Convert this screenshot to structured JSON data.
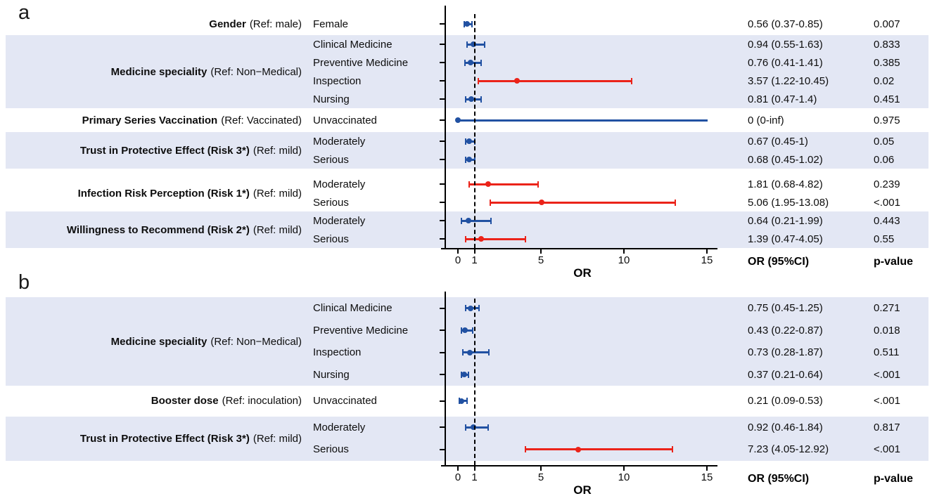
{
  "panels": [
    {
      "letter": "a"
    },
    {
      "letter": "b"
    }
  ],
  "colors": {
    "band": "#e3e7f4",
    "point_blue": "#2151a2",
    "point_red": "#eb2319",
    "axis": "#000000"
  },
  "chart_data": [
    {
      "panel": "a",
      "type": "forest",
      "xlabel": "OR",
      "or_header": "OR (95%CI)",
      "p_header": "p-value",
      "xticks": [
        0,
        1,
        5,
        10,
        15
      ],
      "xlim": [
        0,
        15.3
      ],
      "ref_line": 1,
      "groups": [
        {
          "factor_bold": "Gender",
          "factor_ref": "(Ref: male)",
          "shaded": false,
          "rows": [
            {
              "level": "Female",
              "or": 0.56,
              "lo": 0.37,
              "hi": 0.85,
              "or_ci_text": "0.56 (0.37-0.85)",
              "p_text": "0.007",
              "color": "blue"
            }
          ]
        },
        {
          "factor_bold": "Medicine speciality",
          "factor_ref": "(Ref: Non−Medical)",
          "shaded": true,
          "rows": [
            {
              "level": "Clinical Medicine",
              "or": 0.94,
              "lo": 0.55,
              "hi": 1.63,
              "or_ci_text": "0.94 (0.55-1.63)",
              "p_text": "0.833",
              "color": "blue"
            },
            {
              "level": "Preventive Medicine",
              "or": 0.76,
              "lo": 0.41,
              "hi": 1.41,
              "or_ci_text": "0.76 (0.41-1.41)",
              "p_text": "0.385",
              "color": "blue"
            },
            {
              "level": "Inspection",
              "or": 3.57,
              "lo": 1.22,
              "hi": 10.45,
              "or_ci_text": "3.57 (1.22-10.45)",
              "p_text": "0.02",
              "color": "red"
            },
            {
              "level": "Nursing",
              "or": 0.81,
              "lo": 0.47,
              "hi": 1.4,
              "or_ci_text": "0.81 (0.47-1.4)",
              "p_text": "0.451",
              "color": "blue"
            }
          ]
        },
        {
          "factor_bold": "Primary Series Vaccination",
          "factor_ref": "(Ref: Vaccinated)",
          "shaded": false,
          "rows": [
            {
              "level": "Unvaccinated",
              "or": 0,
              "lo": 0,
              "hi": null,
              "inf": true,
              "or_ci_text": "0 (0-inf)",
              "p_text": "0.975",
              "color": "blue"
            }
          ]
        },
        {
          "factor_bold": "Trust in Protective Effect (Risk 3*)",
          "factor_ref": "(Ref: mild)",
          "shaded": true,
          "rows": [
            {
              "level": "Moderately",
              "or": 0.67,
              "lo": 0.45,
              "hi": 1,
              "or_ci_text": "0.67 (0.45-1)",
              "p_text": "0.05",
              "color": "blue"
            },
            {
              "level": "Serious",
              "or": 0.68,
              "lo": 0.45,
              "hi": 1.02,
              "or_ci_text": "0.68 (0.45-1.02)",
              "p_text": "0.06",
              "color": "blue"
            }
          ]
        },
        {
          "factor_bold": "Infection Risk Perception (Risk 1*)",
          "factor_ref": "(Ref: mild)",
          "shaded": false,
          "rows": [
            {
              "level": "Moderately",
              "or": 1.81,
              "lo": 0.68,
              "hi": 4.82,
              "or_ci_text": "1.81 (0.68-4.82)",
              "p_text": "0.239",
              "color": "red"
            },
            {
              "level": "Serious",
              "or": 5.06,
              "lo": 1.95,
              "hi": 13.08,
              "or_ci_text": "5.06 (1.95-13.08)",
              "p_text": "<.001",
              "color": "red"
            }
          ]
        },
        {
          "factor_bold": "Willingness to Recommend (Risk 2*)",
          "factor_ref": "(Ref: mild)",
          "shaded": true,
          "rows": [
            {
              "level": "Moderately",
              "or": 0.64,
              "lo": 0.21,
              "hi": 1.99,
              "or_ci_text": "0.64 (0.21-1.99)",
              "p_text": "0.443",
              "color": "blue"
            },
            {
              "level": "Serious",
              "or": 1.39,
              "lo": 0.47,
              "hi": 4.05,
              "or_ci_text": "1.39 (0.47-4.05)",
              "p_text": "0.55",
              "color": "red"
            }
          ]
        }
      ]
    },
    {
      "panel": "b",
      "type": "forest",
      "xlabel": "OR",
      "or_header": "OR (95%CI)",
      "p_header": "p-value",
      "xticks": [
        0,
        1,
        5,
        10,
        15
      ],
      "xlim": [
        0,
        15.3
      ],
      "ref_line": 1,
      "groups": [
        {
          "factor_bold": "Medicine speciality",
          "factor_ref": "(Ref: Non−Medical)",
          "shaded": true,
          "rows": [
            {
              "level": "Clinical Medicine",
              "or": 0.75,
              "lo": 0.45,
              "hi": 1.25,
              "or_ci_text": "0.75 (0.45-1.25)",
              "p_text": "0.271",
              "color": "blue"
            },
            {
              "level": "Preventive Medicine",
              "or": 0.43,
              "lo": 0.22,
              "hi": 0.87,
              "or_ci_text": "0.43 (0.22-0.87)",
              "p_text": "0.018",
              "color": "blue"
            },
            {
              "level": "Inspection",
              "or": 0.73,
              "lo": 0.28,
              "hi": 1.87,
              "or_ci_text": "0.73 (0.28-1.87)",
              "p_text": "0.511",
              "color": "blue"
            },
            {
              "level": "Nursing",
              "or": 0.37,
              "lo": 0.21,
              "hi": 0.64,
              "or_ci_text": "0.37 (0.21-0.64)",
              "p_text": "<.001",
              "color": "blue"
            }
          ]
        },
        {
          "factor_bold": "Booster dose",
          "factor_ref": "(Ref: inoculation)",
          "shaded": false,
          "rows": [
            {
              "level": "Unvaccinated",
              "or": 0.21,
              "lo": 0.09,
              "hi": 0.53,
              "or_ci_text": "0.21 (0.09-0.53)",
              "p_text": "<.001",
              "color": "blue"
            }
          ]
        },
        {
          "factor_bold": "Trust in Protective Effect (Risk 3*)",
          "factor_ref": "(Ref: mild)",
          "shaded": true,
          "rows": [
            {
              "level": "Moderately",
              "or": 0.92,
              "lo": 0.46,
              "hi": 1.84,
              "or_ci_text": "0.92 (0.46-1.84)",
              "p_text": "0.817",
              "color": "blue"
            },
            {
              "level": "Serious",
              "or": 7.23,
              "lo": 4.05,
              "hi": 12.92,
              "or_ci_text": "7.23 (4.05-12.92)",
              "p_text": "<.001",
              "color": "red"
            }
          ]
        }
      ]
    }
  ]
}
